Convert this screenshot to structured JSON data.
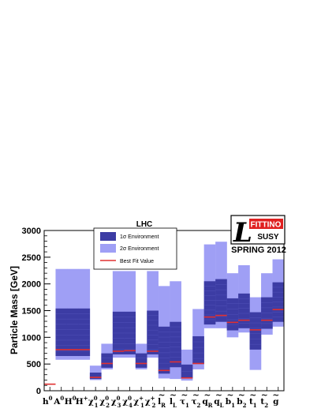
{
  "chart_data": {
    "type": "bar",
    "title": "LHC",
    "xlabel": "",
    "ylabel": "Particle Mass [GeV]",
    "ylim": [
      0,
      3000
    ],
    "yticks": [
      0,
      500,
      1000,
      1500,
      2000,
      2500,
      3000
    ],
    "grid": false,
    "legend_position": "top-center",
    "categories": [
      "h0",
      "A0",
      "H0",
      "H+",
      "χ10",
      "χ20",
      "χ30",
      "χ40",
      "χ1+",
      "χ2+",
      "ẽR",
      "ẽL",
      "τ1",
      "τ2",
      "q̃R",
      "q̃L",
      "b1",
      "b2",
      "t1",
      "t2",
      "g̃"
    ],
    "category_labels": [
      {
        "base": "h",
        "sup": "0",
        "sub": "",
        "tilde": false
      },
      {
        "base": "A",
        "sup": "0",
        "sub": "",
        "tilde": false
      },
      {
        "base": "H",
        "sup": "0",
        "sub": "",
        "tilde": false
      },
      {
        "base": "H",
        "sup": "+",
        "sub": "",
        "tilde": false
      },
      {
        "base": "χ",
        "sup": "0",
        "sub": "1",
        "tilde": false
      },
      {
        "base": "χ",
        "sup": "0",
        "sub": "2",
        "tilde": false
      },
      {
        "base": "χ",
        "sup": "0",
        "sub": "3",
        "tilde": false
      },
      {
        "base": "χ",
        "sup": "0",
        "sub": "4",
        "tilde": false
      },
      {
        "base": "χ",
        "sup": "+",
        "sub": "1",
        "tilde": false
      },
      {
        "base": "χ",
        "sup": "+",
        "sub": "2",
        "tilde": false
      },
      {
        "base": "l",
        "sup": "",
        "sub": "R",
        "tilde": true
      },
      {
        "base": "l",
        "sup": "",
        "sub": "L",
        "tilde": true
      },
      {
        "base": "τ",
        "sup": "",
        "sub": "1",
        "tilde": true
      },
      {
        "base": "τ",
        "sup": "",
        "sub": "2",
        "tilde": true
      },
      {
        "base": "q",
        "sup": "",
        "sub": "R",
        "tilde": true
      },
      {
        "base": "q",
        "sup": "",
        "sub": "L",
        "tilde": true
      },
      {
        "base": "b",
        "sup": "",
        "sub": "1",
        "tilde": true
      },
      {
        "base": "b",
        "sup": "",
        "sub": "2",
        "tilde": true
      },
      {
        "base": "t",
        "sup": "",
        "sub": "1",
        "tilde": true
      },
      {
        "base": "t",
        "sup": "",
        "sub": "2",
        "tilde": true
      },
      {
        "base": "g",
        "sup": "",
        "sub": "",
        "tilde": true
      }
    ],
    "series": [
      {
        "name": "2σ Environment",
        "color": "#9f9ff5",
        "ranges": [
          [
            120,
            126
          ],
          [
            580,
            2280
          ],
          [
            580,
            2280
          ],
          [
            580,
            2280
          ],
          [
            200,
            470
          ],
          [
            400,
            880
          ],
          [
            620,
            2240
          ],
          [
            620,
            2240
          ],
          [
            400,
            880
          ],
          [
            620,
            2240
          ],
          [
            230,
            1960
          ],
          [
            220,
            2050
          ],
          [
            190,
            770
          ],
          [
            400,
            1530
          ],
          [
            1170,
            2740
          ],
          [
            1170,
            2790
          ],
          [
            1000,
            2200
          ],
          [
            1090,
            2350
          ],
          [
            390,
            1750
          ],
          [
            1050,
            2200
          ],
          [
            1200,
            2460
          ]
        ]
      },
      {
        "name": "1σ Environment",
        "color": "#3c3ca4",
        "ranges": [
          [
            120,
            126
          ],
          [
            650,
            1540
          ],
          [
            650,
            1540
          ],
          [
            650,
            1540
          ],
          [
            220,
            340
          ],
          [
            430,
            700
          ],
          [
            680,
            1480
          ],
          [
            680,
            1480
          ],
          [
            430,
            700
          ],
          [
            680,
            1500
          ],
          [
            320,
            1200
          ],
          [
            440,
            1290
          ],
          [
            230,
            490
          ],
          [
            500,
            1020
          ],
          [
            1240,
            2050
          ],
          [
            1290,
            2090
          ],
          [
            1130,
            1730
          ],
          [
            1170,
            1820
          ],
          [
            770,
            1470
          ],
          [
            1160,
            1750
          ],
          [
            1290,
            2030
          ]
        ]
      },
      {
        "name": "Best Fit Value",
        "color": "#e03030",
        "values": [
          123,
          770,
          770,
          770,
          250,
          510,
          740,
          750,
          510,
          740,
          380,
          540,
          240,
          510,
          1380,
          1410,
          1280,
          1320,
          1140,
          1320,
          1520
        ]
      }
    ],
    "legend": [
      {
        "label": "1σ Environment",
        "color": "#3c3ca4",
        "kind": "box"
      },
      {
        "label": "2σ Environment",
        "color": "#9f9ff5",
        "kind": "box"
      },
      {
        "label": "Best Fit Value",
        "color": "#e03030",
        "kind": "line"
      }
    ]
  },
  "logo": {
    "fittino": "FITTINO",
    "susy": "SUSY",
    "edition": "SPRING 2012"
  }
}
